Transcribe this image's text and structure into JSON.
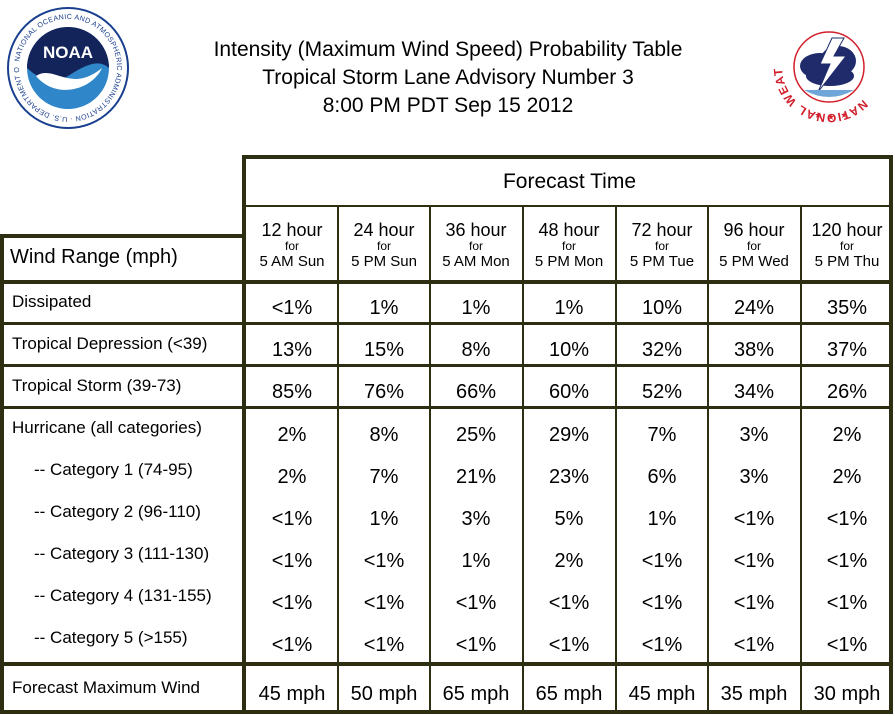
{
  "title": {
    "line1": "Intensity (Maximum Wind Speed) Probability Table",
    "line2": "Tropical Storm Lane Advisory Number 3",
    "line3": "8:00 PM PDT Sep 15 2012"
  },
  "logos": {
    "noaa": {
      "icon": "noaa-logo",
      "text": "NOAA",
      "ring_text": "NATIONAL OCEANIC AND ATMOSPHERIC ADMINISTRATION · U.S. DEPARTMENT OF COMMERCE"
    },
    "nws": {
      "icon": "nws-logo",
      "ring_text": "NATIONAL WEATHER SERVICE"
    }
  },
  "table": {
    "forecast_time_label": "Forecast Time",
    "wind_range_label": "Wind Range (mph)",
    "columns": [
      {
        "hours": "12 hour",
        "for": "for",
        "time": "5 AM Sun"
      },
      {
        "hours": "24 hour",
        "for": "for",
        "time": "5 PM Sun"
      },
      {
        "hours": "36 hour",
        "for": "for",
        "time": "5 AM Mon"
      },
      {
        "hours": "48 hour",
        "for": "for",
        "time": "5 PM Mon"
      },
      {
        "hours": "72 hour",
        "for": "for",
        "time": "5 PM Tue"
      },
      {
        "hours": "96 hour",
        "for": "for",
        "time": "5 PM Wed"
      },
      {
        "hours": "120 hour",
        "for": "for",
        "time": "5 PM Thu"
      }
    ],
    "rows": [
      {
        "label": "Dissipated",
        "values": [
          "<1%",
          "1%",
          "1%",
          "1%",
          "10%",
          "24%",
          "35%"
        ]
      },
      {
        "label": "Tropical Depression (<39)",
        "values": [
          "13%",
          "15%",
          "8%",
          "10%",
          "32%",
          "38%",
          "37%"
        ]
      },
      {
        "label": "Tropical Storm (39-73)",
        "values": [
          "85%",
          "76%",
          "66%",
          "60%",
          "52%",
          "34%",
          "26%"
        ]
      },
      {
        "label": "Hurricane (all categories)",
        "values": [
          "2%",
          "8%",
          "25%",
          "29%",
          "7%",
          "3%",
          "2%"
        ]
      },
      {
        "label": "-- Category 1 (74-95)",
        "values": [
          "2%",
          "7%",
          "21%",
          "23%",
          "6%",
          "3%",
          "2%"
        ]
      },
      {
        "label": "-- Category 2 (96-110)",
        "values": [
          "<1%",
          "1%",
          "3%",
          "5%",
          "1%",
          "<1%",
          "<1%"
        ]
      },
      {
        "label": "-- Category 3 (111-130)",
        "values": [
          "<1%",
          "<1%",
          "1%",
          "2%",
          "<1%",
          "<1%",
          "<1%"
        ]
      },
      {
        "label": "-- Category 4 (131-155)",
        "values": [
          "<1%",
          "<1%",
          "<1%",
          "<1%",
          "<1%",
          "<1%",
          "<1%"
        ]
      },
      {
        "label": "-- Category 5 (>155)",
        "values": [
          "<1%",
          "<1%",
          "<1%",
          "<1%",
          "<1%",
          "<1%",
          "<1%"
        ]
      }
    ],
    "max_wind": {
      "label": "Forecast Maximum Wind",
      "values": [
        "45 mph",
        "50 mph",
        "65 mph",
        "65 mph",
        "45 mph",
        "35 mph",
        "30 mph"
      ]
    }
  },
  "colors": {
    "border": "#2e2e12",
    "noaa_blue": "#1b3f8f",
    "noaa_light": "#2f86c9",
    "nws_red": "#d21f2b",
    "nws_navy": "#1f2b6b"
  }
}
